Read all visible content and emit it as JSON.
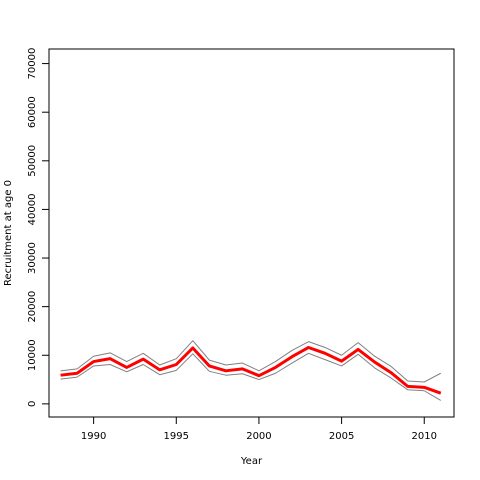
{
  "chart_data": {
    "type": "line",
    "title": "",
    "xlabel": "Year",
    "ylabel": "Recruitment at age 0",
    "xlim": [
      1987.3,
      2011.8
    ],
    "ylim": [
      -2700,
      73000
    ],
    "x_ticks": [
      1990,
      1995,
      2000,
      2005,
      2010
    ],
    "x_tick_labels": [
      "1990",
      "1995",
      "2000",
      "2005",
      "2010"
    ],
    "y_ticks": [
      0,
      10000,
      20000,
      30000,
      40000,
      50000,
      60000,
      70000
    ],
    "y_tick_labels": [
      "0",
      "10000",
      "20000",
      "30000",
      "40000",
      "50000",
      "60000",
      "70000"
    ],
    "grid": false,
    "x": [
      1988,
      1989,
      1990,
      1991,
      1992,
      1993,
      1994,
      1995,
      1996,
      1997,
      1998,
      1999,
      2000,
      2001,
      2002,
      2003,
      2004,
      2005,
      2006,
      2007,
      2008,
      2009,
      2010,
      2011
    ],
    "series": [
      {
        "role": "upper",
        "color": "#808080",
        "values": [
          6800,
          7200,
          9800,
          10500,
          8700,
          10400,
          8000,
          9300,
          13000,
          9000,
          8000,
          8400,
          6800,
          8700,
          11000,
          12800,
          11600,
          10000,
          12600,
          9800,
          7700,
          4700,
          4500,
          6300
        ]
      },
      {
        "role": "estimate",
        "color": "#ff0000",
        "values": [
          5900,
          6300,
          8700,
          9300,
          7500,
          9200,
          7000,
          8100,
          11500,
          7800,
          6800,
          7200,
          5800,
          7500,
          9700,
          11600,
          10400,
          8800,
          11200,
          8600,
          6400,
          3600,
          3400,
          2200
        ]
      },
      {
        "role": "lower",
        "color": "#808080",
        "values": [
          5100,
          5500,
          7800,
          8100,
          6600,
          8100,
          6000,
          6900,
          10300,
          6700,
          5900,
          6200,
          5000,
          6300,
          8400,
          10400,
          9100,
          7800,
          10200,
          7400,
          5300,
          2900,
          2700,
          700
        ]
      }
    ]
  }
}
